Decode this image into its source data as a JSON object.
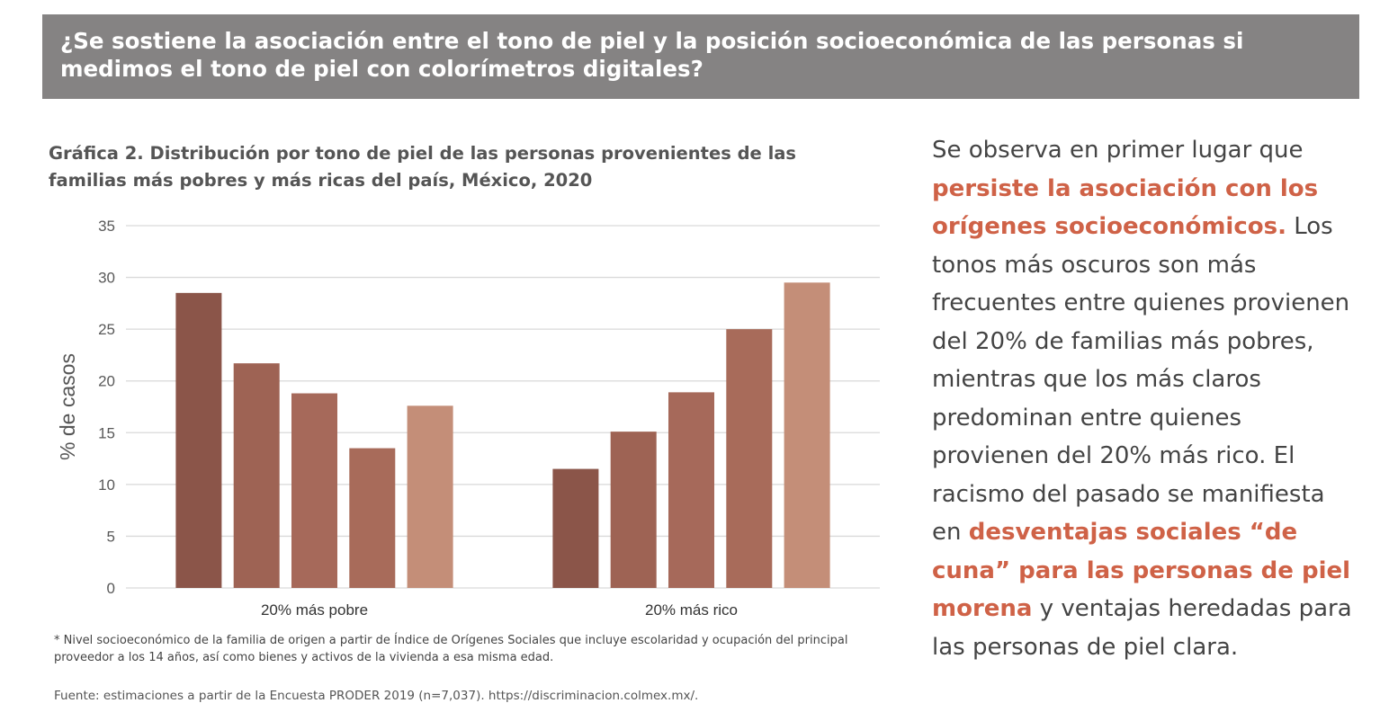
{
  "header": {
    "question": "¿Se sostiene la asociación entre el tono de piel y la posición socioeconómica de las personas si medimos el tono de piel con colorímetros digitales?"
  },
  "chart_title": "Gráfica 2. Distribución por tono de piel de las personas provenientes de las familias más pobres y más ricas del país, México, 2020",
  "note": "* Nivel socioeconómico de la familia de origen a partir de Índice de Orígenes Sociales que incluye escolaridad y ocupación del  principal proveedor a los 14 años, así como bienes y activos de la vivienda a esa misma edad.",
  "source": "Fuente:  estimaciones a partir de la Encuesta PRODER 2019 (n=7,037). https://discriminacion.colmex.mx/.",
  "side_text": {
    "p1": "Se observa en primer lugar que ",
    "h1": "persiste la asociación con los orígenes socioeconómicos.",
    "p2": " Los tonos más oscuros son más frecuentes entre quienes provienen del 20% de familias más pobres, mientras que los más claros predominan entre quienes provienen del 20% más rico. El racismo del pasado se manifiesta en ",
    "h2": "desventajas sociales “de cuna” para las personas de piel morena",
    "p3": " y ventajas heredadas para las personas de piel clara."
  },
  "chart_data": {
    "type": "bar",
    "categories": [
      "20% más pobre",
      "20% más rico"
    ],
    "series": [
      {
        "values": [
          28.5,
          11.5
        ],
        "color": "#8b5549"
      },
      {
        "values": [
          21.7,
          15.1
        ],
        "color": "#9e6354"
      },
      {
        "values": [
          18.8,
          18.9
        ],
        "color": "#a6695a"
      },
      {
        "values": [
          13.5,
          25.0
        ],
        "color": "#a86b5a"
      },
      {
        "values": [
          17.6,
          29.5
        ],
        "color": "#c48e78"
      }
    ],
    "ylabel": "% de casos",
    "ylim": [
      0,
      35
    ],
    "yticks": [
      0,
      5,
      10,
      15,
      20,
      25,
      30,
      35
    ],
    "grid": true,
    "legend": "none"
  }
}
